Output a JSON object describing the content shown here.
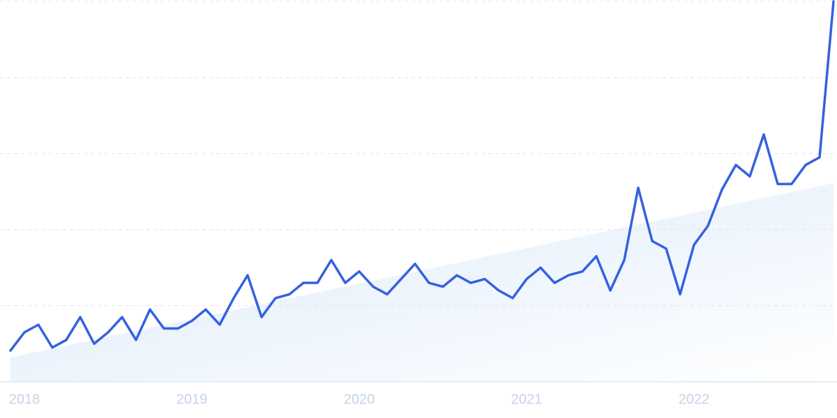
{
  "chart_data": {
    "type": "line",
    "categories": [
      null,
      "2018",
      null,
      null,
      null,
      null,
      null,
      null,
      null,
      null,
      null,
      null,
      null,
      "2019",
      null,
      null,
      null,
      null,
      null,
      null,
      null,
      null,
      null,
      null,
      null,
      "2020",
      null,
      null,
      null,
      null,
      null,
      null,
      null,
      null,
      null,
      null,
      null,
      "2021",
      null,
      null,
      null,
      null,
      null,
      null,
      null,
      null,
      null,
      null,
      null,
      "2022",
      null,
      null,
      null,
      null,
      null,
      null,
      null,
      null,
      null,
      null
    ],
    "series": [
      {
        "color": "#3461e0",
        "values": [
          8.2,
          13,
          15,
          9,
          11,
          17,
          10,
          13,
          17,
          11,
          19,
          14,
          14,
          16,
          19,
          15,
          22,
          28,
          17,
          22,
          23,
          26,
          26,
          32,
          26,
          29,
          25,
          23,
          27,
          31,
          26,
          25,
          28,
          26,
          27,
          24,
          22,
          27,
          30,
          26,
          28,
          29,
          33,
          24,
          32,
          51,
          37,
          35,
          23,
          36,
          41,
          50.5,
          57,
          54,
          65,
          52,
          52,
          57,
          59,
          100
        ]
      }
    ],
    "trend": {
      "start": 6.4,
      "end": 52.2,
      "color": "#e3eefb"
    },
    "ylim": [
      0,
      100
    ],
    "yticks": [
      0,
      20,
      40,
      60,
      80,
      100
    ],
    "grid": true
  }
}
